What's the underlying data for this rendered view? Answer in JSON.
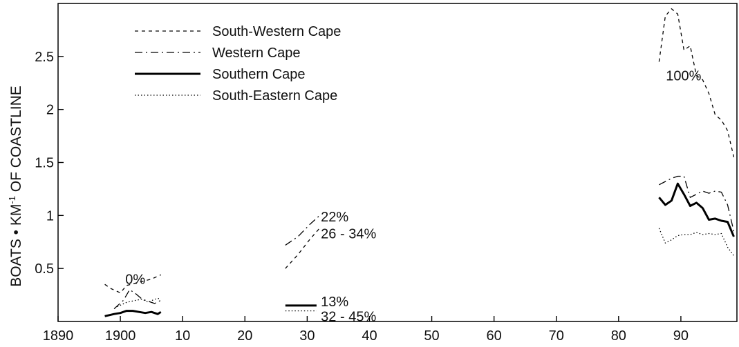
{
  "chart_data": {
    "type": "line",
    "ylabel_parts": {
      "main": "BOATS • KM",
      "sup": "-1",
      "tail": " OF COASTLINE"
    },
    "xlim": [
      1890,
      1999
    ],
    "ylim": [
      0,
      3.0
    ],
    "xticks": [
      {
        "x": 1890,
        "label": "1890"
      },
      {
        "x": 1900,
        "label": "1900"
      },
      {
        "x": 1910,
        "label": "10"
      },
      {
        "x": 1920,
        "label": "20"
      },
      {
        "x": 1930,
        "label": "30"
      },
      {
        "x": 1940,
        "label": "40"
      },
      {
        "x": 1950,
        "label": "50"
      },
      {
        "x": 1960,
        "label": "60"
      },
      {
        "x": 1970,
        "label": "70"
      },
      {
        "x": 1980,
        "label": "80"
      },
      {
        "x": 1990,
        "label": "90"
      }
    ],
    "yticks": [
      {
        "y": 0.5,
        "label": "0.5"
      },
      {
        "y": 1,
        "label": "1"
      },
      {
        "y": 1.5,
        "label": "1.5"
      },
      {
        "y": 2,
        "label": "2"
      },
      {
        "y": 2.5,
        "label": "2.5"
      }
    ],
    "grid": false,
    "legend_position": "top-left",
    "series": [
      {
        "name": "South-Western Cape",
        "style": "dashed",
        "segments": [
          [
            [
              1897.5,
              0.35
            ],
            [
              1898.5,
              0.31
            ],
            [
              1900,
              0.27
            ],
            [
              1901,
              0.34
            ],
            [
              1903,
              0.37
            ],
            [
              1905,
              0.4
            ],
            [
              1906.5,
              0.44
            ]
          ],
          [
            [
              1926.5,
              0.5
            ],
            [
              1928.5,
              0.63
            ],
            [
              1930.5,
              0.78
            ],
            [
              1932,
              0.88
            ]
          ],
          [
            [
              1986.5,
              2.45
            ],
            [
              1987.5,
              2.88
            ],
            [
              1988.5,
              2.95
            ],
            [
              1989.5,
              2.9
            ],
            [
              1990.5,
              2.56
            ],
            [
              1991.5,
              2.6
            ],
            [
              1992.5,
              2.32
            ],
            [
              1993.5,
              2.28
            ],
            [
              1994.5,
              2.15
            ],
            [
              1995.5,
              1.95
            ],
            [
              1996.5,
              1.9
            ],
            [
              1997.5,
              1.8
            ],
            [
              1998.5,
              1.55
            ]
          ]
        ]
      },
      {
        "name": "Western Cape",
        "style": "dashdot",
        "segments": [
          [
            [
              1899,
              0.12
            ],
            [
              1900.5,
              0.2
            ],
            [
              1901.5,
              0.3
            ],
            [
              1902.5,
              0.26
            ],
            [
              1903.5,
              0.21
            ],
            [
              1904.5,
              0.19
            ],
            [
              1905.5,
              0.17
            ],
            [
              1906.5,
              0.2
            ]
          ],
          [
            [
              1926.5,
              0.72
            ],
            [
              1928.5,
              0.8
            ],
            [
              1930.5,
              0.92
            ],
            [
              1932,
              1.0
            ]
          ],
          [
            [
              1986.5,
              1.29
            ],
            [
              1988.5,
              1.35
            ],
            [
              1989.5,
              1.37
            ],
            [
              1990.5,
              1.37
            ],
            [
              1991.5,
              1.17
            ],
            [
              1992.5,
              1.2
            ],
            [
              1993.5,
              1.23
            ],
            [
              1994.5,
              1.21
            ],
            [
              1995.5,
              1.23
            ],
            [
              1996.5,
              1.22
            ],
            [
              1997.5,
              1.1
            ],
            [
              1998.5,
              0.85
            ]
          ]
        ]
      },
      {
        "name": "Southern Cape",
        "style": "solid",
        "segments": [
          [
            [
              1897.5,
              0.05
            ],
            [
              1899,
              0.07
            ],
            [
              1900,
              0.08
            ],
            [
              1901,
              0.1
            ],
            [
              1902,
              0.1
            ],
            [
              1903,
              0.09
            ],
            [
              1904,
              0.08
            ],
            [
              1905,
              0.09
            ],
            [
              1906,
              0.07
            ],
            [
              1906.5,
              0.09
            ]
          ],
          [
            [
              1926.5,
              0.15
            ],
            [
              1931.5,
              0.15
            ]
          ],
          [
            [
              1986.5,
              1.17
            ],
            [
              1987.5,
              1.1
            ],
            [
              1988.5,
              1.14
            ],
            [
              1989.5,
              1.3
            ],
            [
              1990.5,
              1.2
            ],
            [
              1991.5,
              1.09
            ],
            [
              1992.5,
              1.12
            ],
            [
              1993.5,
              1.07
            ],
            [
              1994.5,
              0.96
            ],
            [
              1995.5,
              0.97
            ],
            [
              1996.5,
              0.95
            ],
            [
              1997.5,
              0.94
            ],
            [
              1998.5,
              0.8
            ]
          ]
        ]
      },
      {
        "name": "South-Eastern Cape",
        "style": "dotted",
        "segments": [
          [
            [
              1899.5,
              0.14
            ],
            [
              1901,
              0.18
            ],
            [
              1902.5,
              0.2
            ],
            [
              1903.5,
              0.21
            ],
            [
              1904.5,
              0.18
            ],
            [
              1905.5,
              0.21
            ],
            [
              1906.5,
              0.22
            ]
          ],
          [
            [
              1926.5,
              0.1
            ],
            [
              1931.5,
              0.1
            ]
          ],
          [
            [
              1986.5,
              0.88
            ],
            [
              1987.5,
              0.74
            ],
            [
              1988.5,
              0.77
            ],
            [
              1989.5,
              0.81
            ],
            [
              1990.5,
              0.82
            ],
            [
              1991.5,
              0.82
            ],
            [
              1992.5,
              0.84
            ],
            [
              1993.5,
              0.82
            ],
            [
              1994.5,
              0.83
            ],
            [
              1995.5,
              0.82
            ],
            [
              1996.5,
              0.83
            ],
            [
              1997.5,
              0.7
            ],
            [
              1998.5,
              0.62
            ]
          ]
        ]
      }
    ],
    "annotations": [
      {
        "text": "0%",
        "x": 1900.8,
        "y": 0.4
      },
      {
        "text": "22%",
        "x": 1932.2,
        "y": 0.99
      },
      {
        "text": "26 - 34%",
        "x": 1932.2,
        "y": 0.83
      },
      {
        "text": "13%",
        "x": 1932.2,
        "y": 0.19
      },
      {
        "text": "32 - 45%",
        "x": 1932.2,
        "y": 0.05
      },
      {
        "text": "100%",
        "x": 1987.6,
        "y": 2.32
      }
    ]
  }
}
